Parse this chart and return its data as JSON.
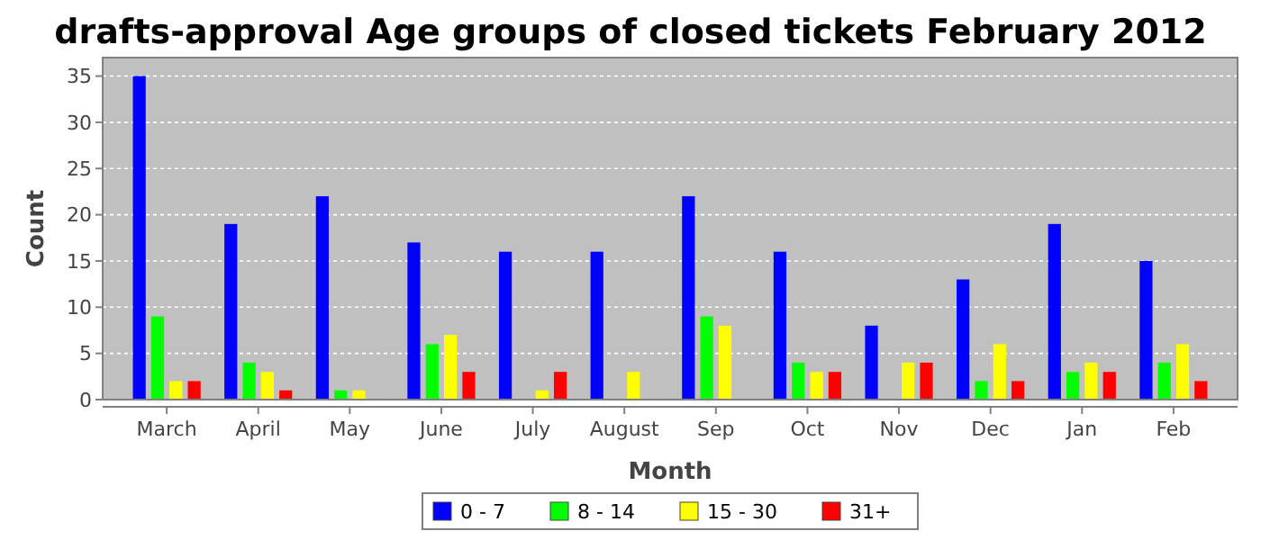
{
  "chart_data": {
    "type": "bar",
    "title": "drafts-approval Age groups of closed tickets February 2012",
    "xlabel": "Month",
    "ylabel": "Count",
    "categories": [
      "March",
      "April",
      "May",
      "June",
      "July",
      "August",
      "Sep",
      "Oct",
      "Nov",
      "Dec",
      "Jan",
      "Feb"
    ],
    "series": [
      {
        "name": "0 - 7",
        "color": "#0000ff",
        "values": [
          35,
          19,
          22,
          17,
          16,
          16,
          22,
          16,
          8,
          13,
          19,
          15
        ]
      },
      {
        "name": "8 - 14",
        "color": "#00ff00",
        "values": [
          9,
          4,
          1,
          6,
          0,
          0,
          9,
          4,
          0,
          2,
          3,
          4
        ]
      },
      {
        "name": "15 - 30",
        "color": "#ffff00",
        "values": [
          2,
          3,
          1,
          7,
          1,
          3,
          8,
          3,
          4,
          6,
          4,
          6
        ]
      },
      {
        "name": "31+",
        "color": "#ff0000",
        "values": [
          2,
          1,
          0,
          3,
          3,
          0,
          0,
          3,
          4,
          2,
          3,
          2
        ]
      }
    ],
    "ylim": [
      0,
      37
    ],
    "yticks": [
      0,
      5,
      10,
      15,
      20,
      25,
      30,
      35
    ],
    "grid": "y",
    "legend": "bottom"
  }
}
